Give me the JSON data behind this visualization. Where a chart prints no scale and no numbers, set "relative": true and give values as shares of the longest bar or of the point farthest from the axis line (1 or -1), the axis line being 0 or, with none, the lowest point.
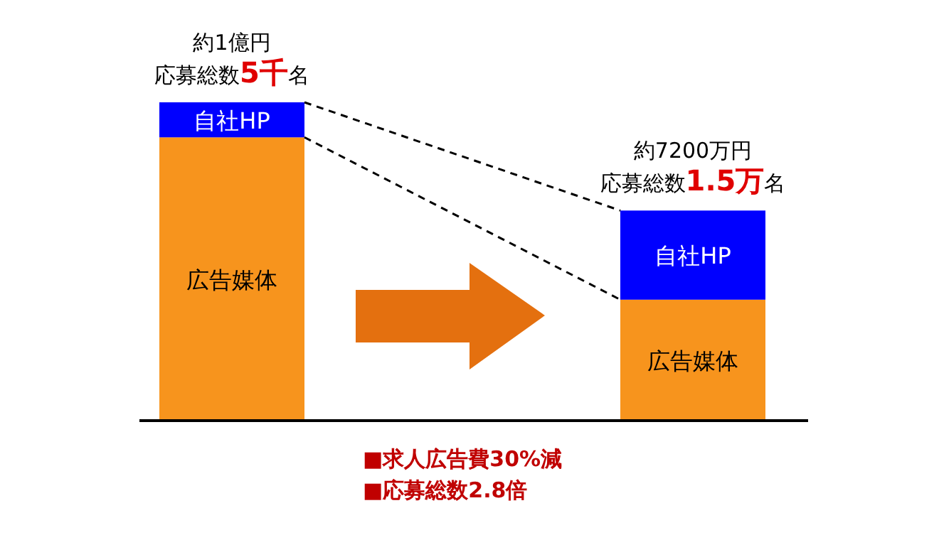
{
  "chart_data": {
    "type": "bar",
    "stacked": true,
    "relative": true,
    "categories": [
      null,
      null
    ],
    "series": [
      {
        "name": "広告媒体",
        "color": "#f7941d",
        "values": [
          0.89,
          0.38
        ]
      },
      {
        "name": "自社HP",
        "color": "#0000ff",
        "values": [
          0.11,
          0.28
        ]
      }
    ],
    "annotations": [
      "約1億円",
      "応募総数5千名",
      "約7200万円",
      "応募総数1.5万名",
      "■求人広告費30%減",
      "■応募総数2.8倍"
    ]
  }
}
